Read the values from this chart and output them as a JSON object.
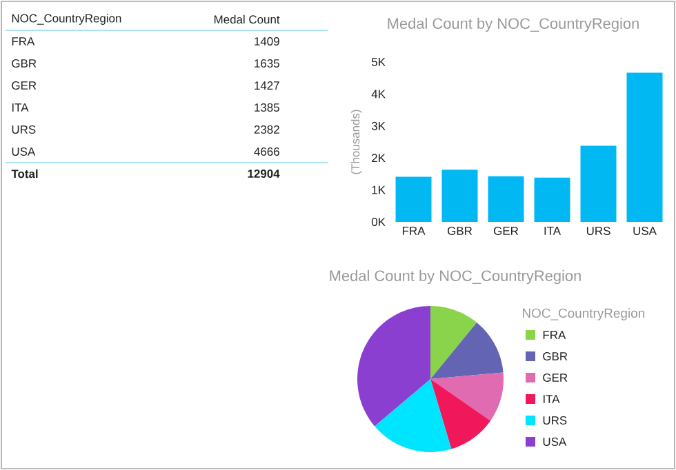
{
  "chart_data": [
    {
      "type": "other",
      "xlabel": "NOC_CountryRegion",
      "ylabel": "Medal Count",
      "categories": [
        "FRA",
        "GBR",
        "GER",
        "ITA",
        "URS",
        "USA"
      ],
      "values": [
        1409,
        1635,
        1427,
        1385,
        2382,
        4666
      ],
      "data_labels": true,
      "annotations": [
        "Total",
        "12904"
      ]
    },
    {
      "type": "bar",
      "title": "Medal Count by NOC_CountryRegion",
      "ylabel": "(Thousands)",
      "categories": [
        "FRA",
        "GBR",
        "GER",
        "ITA",
        "URS",
        "USA"
      ],
      "values": [
        1409,
        1635,
        1427,
        1385,
        2382,
        4666
      ],
      "color": "#01b8f2",
      "ylim": [
        0,
        5000
      ],
      "yticks": [
        {
          "value": 0,
          "label": "0K"
        },
        {
          "value": 1000,
          "label": "1K"
        },
        {
          "value": 2000,
          "label": "2K"
        },
        {
          "value": 3000,
          "label": "3K"
        },
        {
          "value": 4000,
          "label": "4K"
        },
        {
          "value": 5000,
          "label": "5K"
        }
      ]
    },
    {
      "type": "pie",
      "title": "Medal Count by NOC_CountryRegion",
      "legend_title": "NOC_CountryRegion",
      "legend": "right",
      "categories": [
        "FRA",
        "GBR",
        "GER",
        "ITA",
        "URS",
        "USA"
      ],
      "values": [
        10.92,
        12.67,
        11.06,
        10.73,
        18.46,
        36.16
      ],
      "colors": [
        "#8ad44c",
        "#6464b4",
        "#e06bb0",
        "#f0185a",
        "#00e5ff",
        "#8a3fd1"
      ]
    }
  ]
}
